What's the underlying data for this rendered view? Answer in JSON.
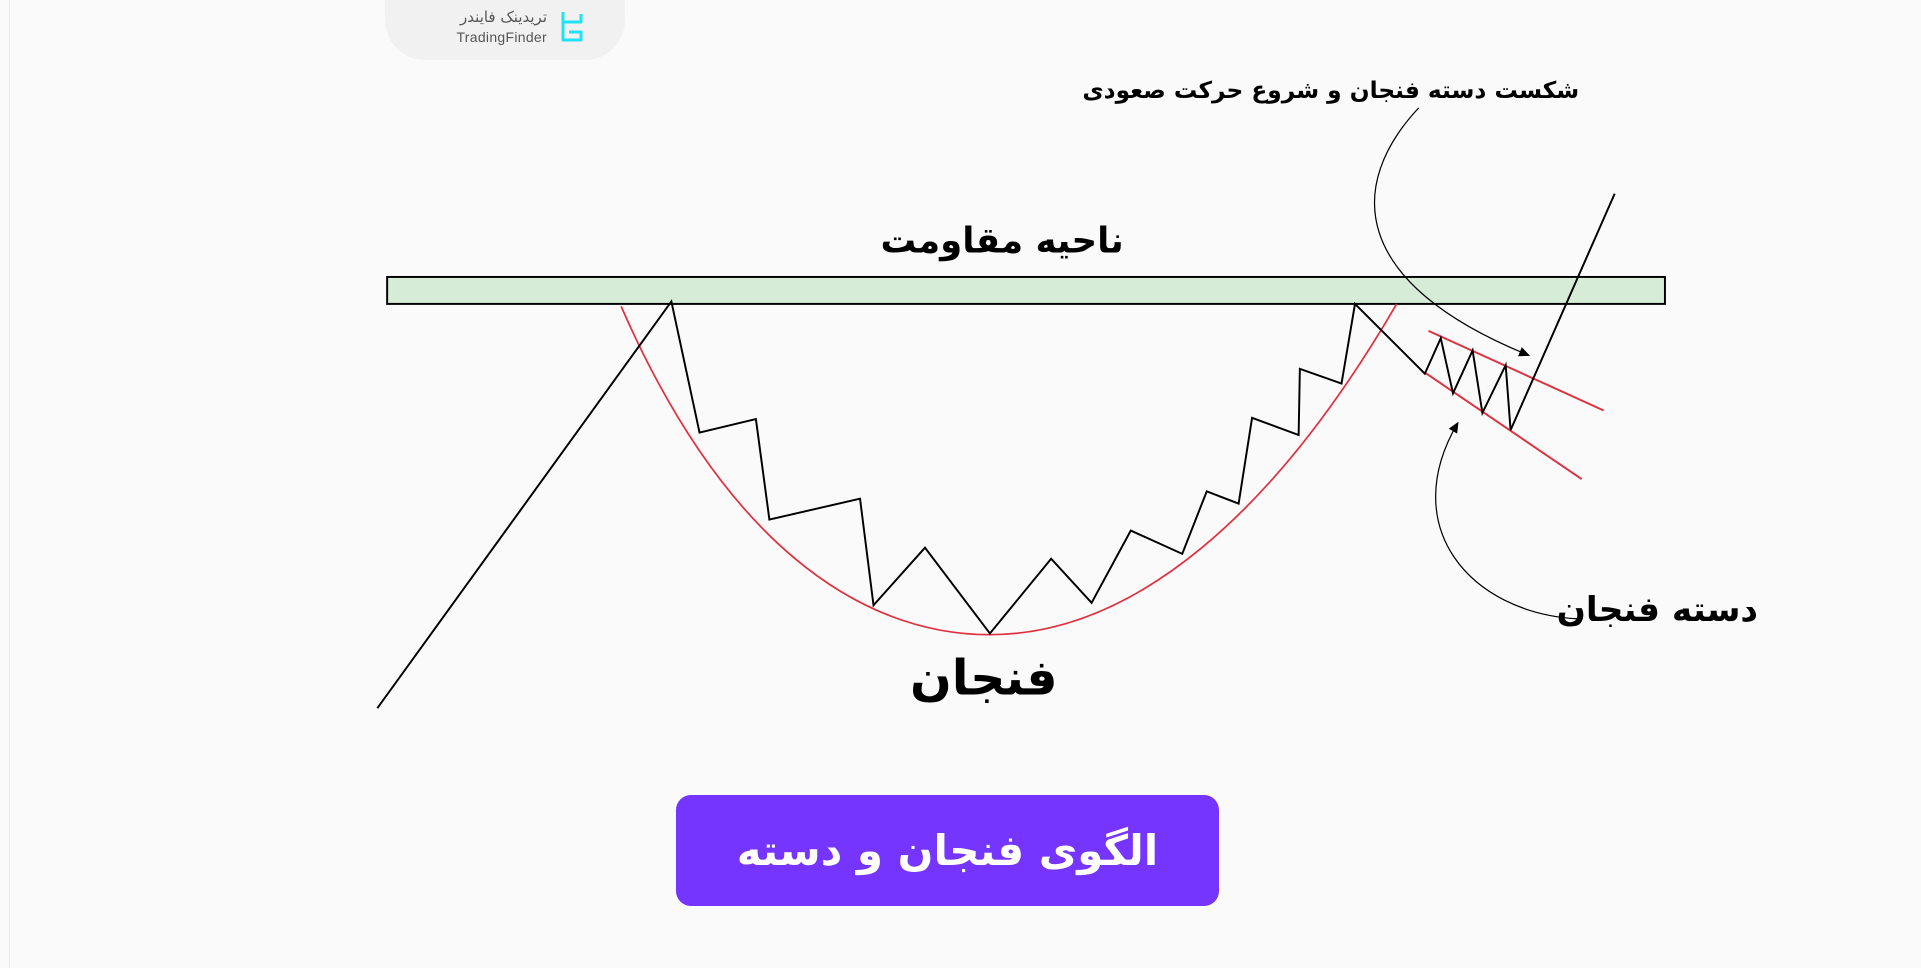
{
  "logo": {
    "name_fa": "تریدینک فایندر",
    "name_en": "TradingFinder",
    "accent": "#1fe3f2"
  },
  "labels": {
    "breakout": "شکست دسته فنجان و شروع حرکت صعودی",
    "resistance": "ناحیه مقاومت",
    "cup": "فنجان",
    "handle": "دسته فنجان"
  },
  "button": {
    "label": "الگوی فنجان و دسته",
    "color": "#7634ff"
  },
  "colors": {
    "resistance_zone": "#d7ecd6",
    "curve": "#e0303f",
    "price": "#000000"
  }
}
